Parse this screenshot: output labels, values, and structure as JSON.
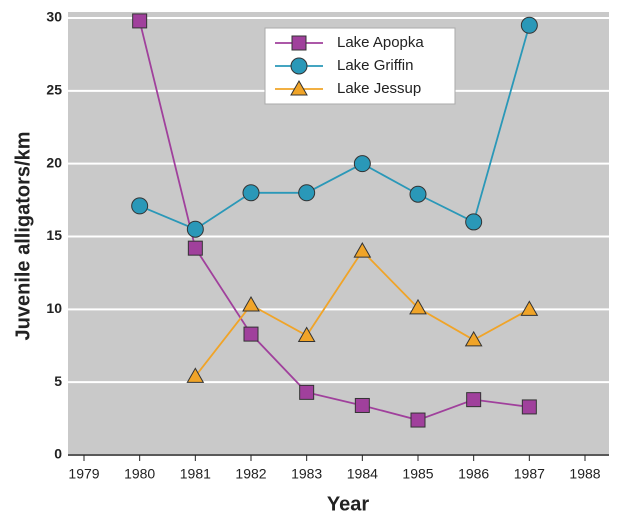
{
  "chart_data": {
    "type": "line",
    "x_label": "Year",
    "y_label": "Juvenile alligators/km",
    "x": [
      1980,
      1981,
      1982,
      1983,
      1984,
      1985,
      1986,
      1987
    ],
    "series": [
      {
        "name": "Lake Apopka",
        "color": "#a0409c",
        "marker": "square",
        "values": [
          29.8,
          14.2,
          8.3,
          4.3,
          3.4,
          2.4,
          3.8,
          3.3
        ]
      },
      {
        "name": "Lake Griffin",
        "color": "#2a98b8",
        "marker": "circle",
        "values": [
          17.1,
          15.5,
          18,
          18,
          20,
          17.9,
          16,
          29.5
        ]
      },
      {
        "name": "Lake Jessup",
        "color": "#f0a428",
        "marker": "triangle",
        "values": [
          null,
          5.4,
          10.3,
          8.2,
          14,
          10.1,
          7.9,
          10
        ]
      }
    ],
    "xlim": [
      1979,
      1988
    ],
    "xticks": [
      1979,
      1980,
      1981,
      1982,
      1983,
      1984,
      1985,
      1986,
      1987,
      1988
    ],
    "ylim": [
      0,
      30
    ],
    "yticks": [
      0,
      5,
      10,
      15,
      20,
      25,
      30
    ],
    "grid": true,
    "legend": "top"
  }
}
